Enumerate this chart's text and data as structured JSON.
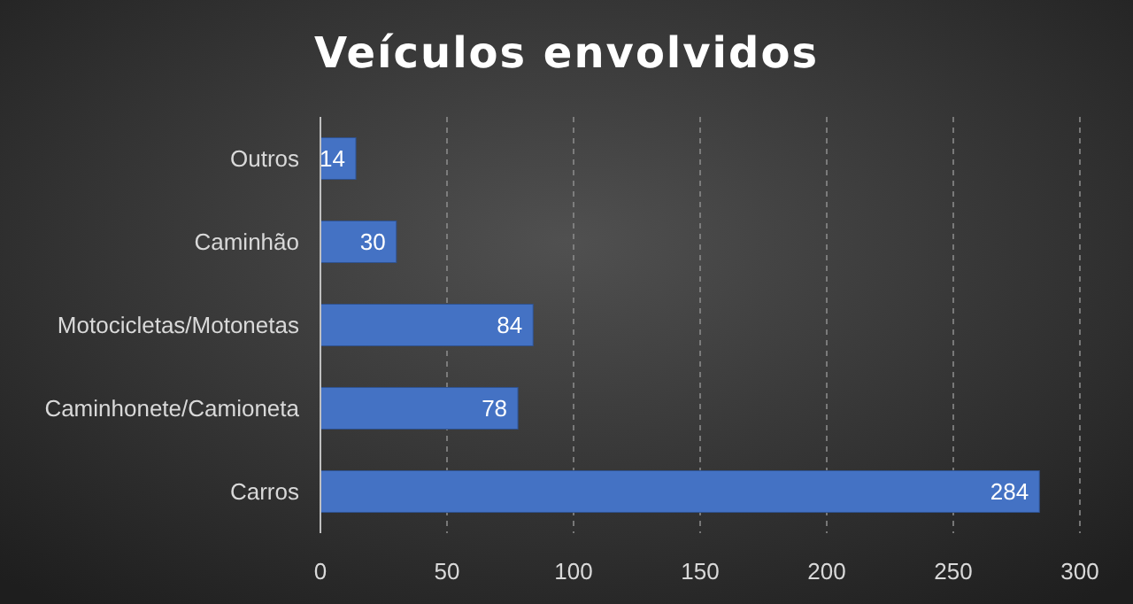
{
  "chart_data": {
    "type": "bar",
    "title": "Veículos envolvidos",
    "orientation": "horizontal",
    "categories": [
      "Outros",
      "Caminhão",
      "Motocicletas/Motonetas",
      "Caminhonete/Camioneta",
      "Carros"
    ],
    "values": [
      14,
      30,
      84,
      78,
      284
    ],
    "color": "#4472c4",
    "xlim": [
      0,
      300
    ],
    "xticks": [
      0,
      50,
      100,
      150,
      200,
      250,
      300
    ],
    "grid": "x",
    "data_labels": true
  }
}
